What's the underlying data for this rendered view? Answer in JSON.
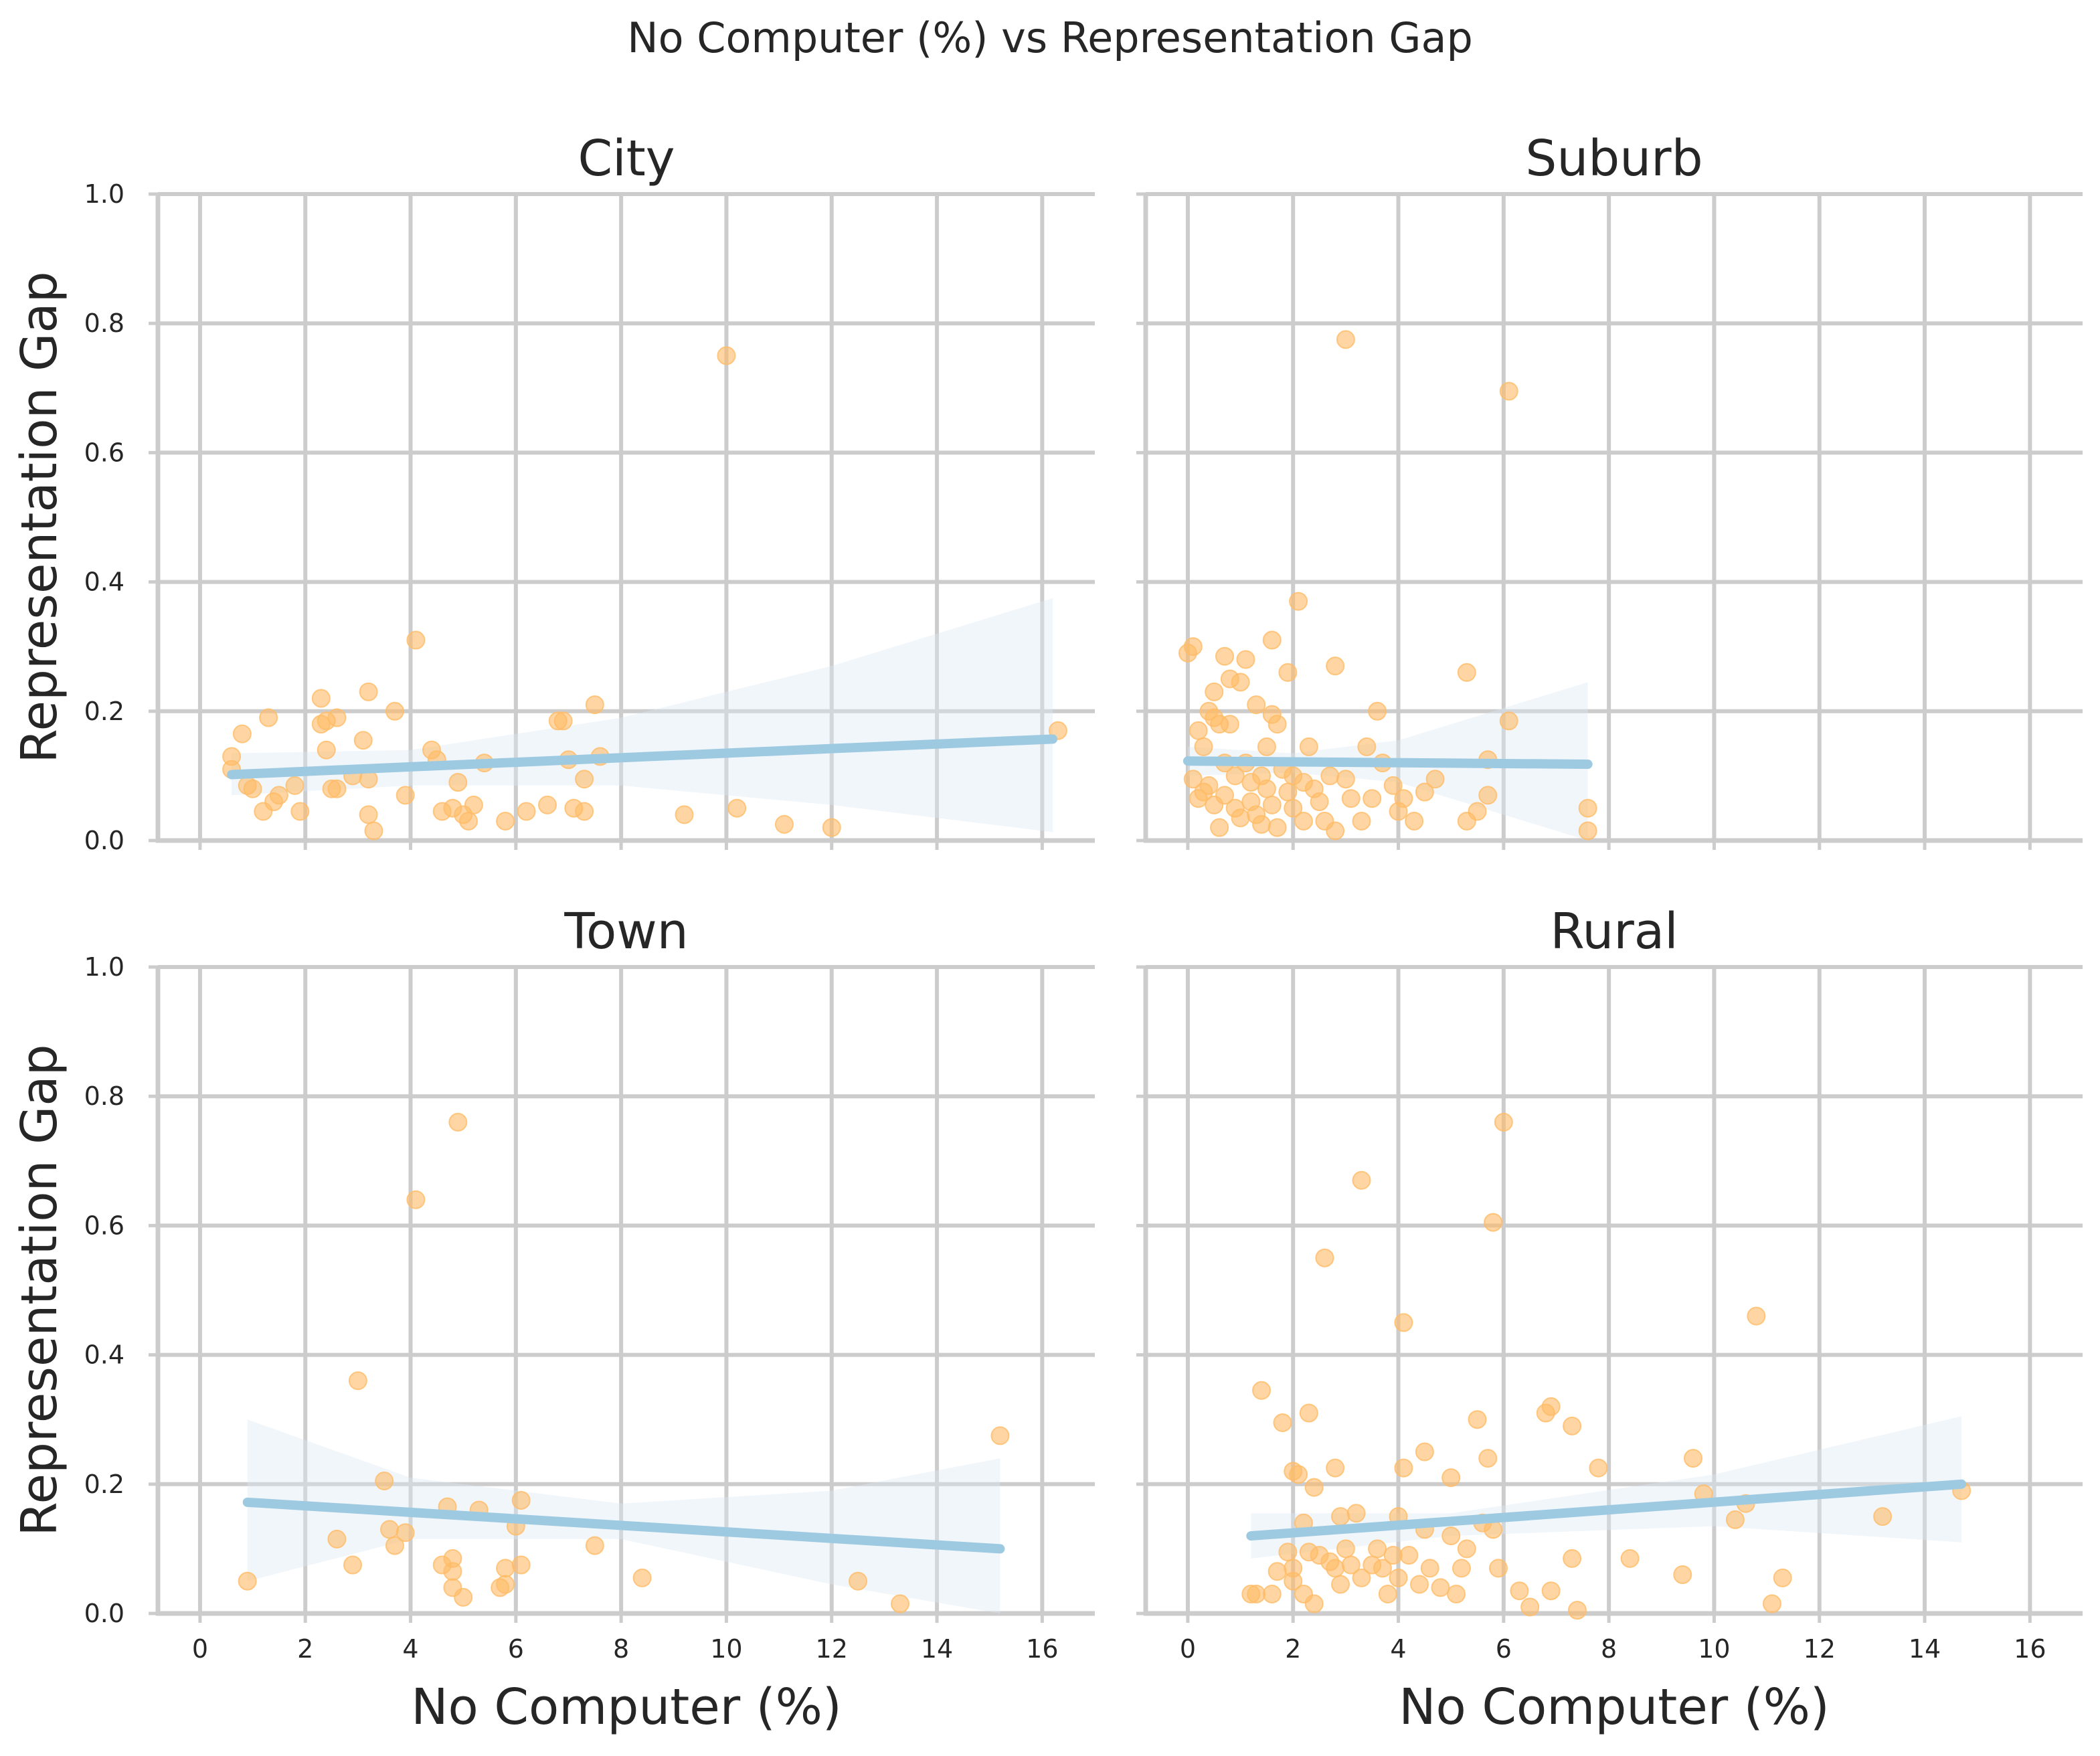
{
  "chart_data": {
    "type": "scatter",
    "title": "No Computer (%) vs Representation Gap",
    "xlabel": "No Computer (%)",
    "ylabel": "Representation Gap",
    "xlim": [
      -0.8,
      17
    ],
    "ylim": [
      0,
      1
    ],
    "xticks": [
      0,
      2,
      4,
      6,
      8,
      10,
      12,
      14,
      16
    ],
    "yticks": [
      0.0,
      0.2,
      0.4,
      0.6,
      0.8,
      1.0
    ],
    "grid": true,
    "shared_axes": true,
    "colors": {
      "points": "#ffbb66",
      "fit_line": "#9ecae1",
      "ci_band": "#dbe9f6"
    },
    "panels": [
      {
        "name": "City",
        "fit": {
          "x": [
            0.6,
            16.2
          ],
          "y": [
            0.102,
            0.157
          ]
        },
        "ci": {
          "x": [
            0.6,
            4.0,
            8.0,
            12.0,
            16.2
          ],
          "lower": [
            0.07,
            0.085,
            0.085,
            0.055,
            0.013
          ],
          "upper": [
            0.135,
            0.14,
            0.19,
            0.27,
            0.375
          ]
        },
        "points": [
          [
            0.6,
            0.13
          ],
          [
            0.6,
            0.11
          ],
          [
            0.8,
            0.165
          ],
          [
            0.9,
            0.085
          ],
          [
            1.0,
            0.08
          ],
          [
            1.2,
            0.045
          ],
          [
            1.3,
            0.19
          ],
          [
            1.4,
            0.06
          ],
          [
            1.5,
            0.07
          ],
          [
            1.8,
            0.085
          ],
          [
            1.9,
            0.045
          ],
          [
            2.3,
            0.22
          ],
          [
            2.3,
            0.18
          ],
          [
            2.4,
            0.185
          ],
          [
            2.4,
            0.14
          ],
          [
            2.5,
            0.08
          ],
          [
            2.6,
            0.19
          ],
          [
            2.6,
            0.08
          ],
          [
            2.9,
            0.1
          ],
          [
            3.1,
            0.155
          ],
          [
            3.2,
            0.23
          ],
          [
            3.2,
            0.095
          ],
          [
            3.2,
            0.04
          ],
          [
            3.3,
            0.015
          ],
          [
            3.7,
            0.2
          ],
          [
            3.9,
            0.07
          ],
          [
            4.1,
            0.31
          ],
          [
            4.4,
            0.14
          ],
          [
            4.5,
            0.125
          ],
          [
            4.6,
            0.045
          ],
          [
            4.8,
            0.05
          ],
          [
            4.9,
            0.09
          ],
          [
            5.0,
            0.04
          ],
          [
            5.1,
            0.03
          ],
          [
            5.2,
            0.055
          ],
          [
            5.4,
            0.12
          ],
          [
            5.8,
            0.03
          ],
          [
            6.2,
            0.045
          ],
          [
            6.6,
            0.055
          ],
          [
            6.8,
            0.185
          ],
          [
            6.9,
            0.185
          ],
          [
            7.0,
            0.125
          ],
          [
            7.1,
            0.05
          ],
          [
            7.3,
            0.095
          ],
          [
            7.3,
            0.045
          ],
          [
            7.5,
            0.21
          ],
          [
            7.6,
            0.13
          ],
          [
            9.2,
            0.04
          ],
          [
            10.0,
            0.75
          ],
          [
            10.2,
            0.05
          ],
          [
            11.1,
            0.025
          ],
          [
            12.0,
            0.02
          ],
          [
            16.3,
            0.17
          ]
        ]
      },
      {
        "name": "Suburb",
        "fit": {
          "x": [
            0.0,
            7.6
          ],
          "y": [
            0.123,
            0.118
          ]
        },
        "ci": {
          "x": [
            0.0,
            2.0,
            4.0,
            7.6
          ],
          "lower": [
            0.1,
            0.105,
            0.09,
            0.0
          ],
          "upper": [
            0.145,
            0.135,
            0.155,
            0.245
          ]
        },
        "points": [
          [
            0.0,
            0.29
          ],
          [
            0.1,
            0.3
          ],
          [
            0.1,
            0.095
          ],
          [
            0.2,
            0.17
          ],
          [
            0.2,
            0.065
          ],
          [
            0.3,
            0.145
          ],
          [
            0.3,
            0.075
          ],
          [
            0.4,
            0.2
          ],
          [
            0.4,
            0.085
          ],
          [
            0.5,
            0.23
          ],
          [
            0.5,
            0.19
          ],
          [
            0.5,
            0.055
          ],
          [
            0.6,
            0.18
          ],
          [
            0.6,
            0.02
          ],
          [
            0.7,
            0.285
          ],
          [
            0.7,
            0.12
          ],
          [
            0.7,
            0.07
          ],
          [
            0.8,
            0.25
          ],
          [
            0.8,
            0.18
          ],
          [
            0.9,
            0.1
          ],
          [
            0.9,
            0.05
          ],
          [
            1.0,
            0.245
          ],
          [
            1.0,
            0.035
          ],
          [
            1.1,
            0.28
          ],
          [
            1.1,
            0.12
          ],
          [
            1.2,
            0.09
          ],
          [
            1.2,
            0.06
          ],
          [
            1.3,
            0.21
          ],
          [
            1.3,
            0.04
          ],
          [
            1.4,
            0.1
          ],
          [
            1.4,
            0.025
          ],
          [
            1.5,
            0.145
          ],
          [
            1.5,
            0.08
          ],
          [
            1.6,
            0.31
          ],
          [
            1.6,
            0.195
          ],
          [
            1.6,
            0.055
          ],
          [
            1.7,
            0.18
          ],
          [
            1.7,
            0.02
          ],
          [
            1.8,
            0.11
          ],
          [
            1.9,
            0.26
          ],
          [
            1.9,
            0.075
          ],
          [
            2.0,
            0.1
          ],
          [
            2.0,
            0.05
          ],
          [
            2.1,
            0.37
          ],
          [
            2.2,
            0.09
          ],
          [
            2.2,
            0.03
          ],
          [
            2.3,
            0.145
          ],
          [
            2.4,
            0.08
          ],
          [
            2.5,
            0.06
          ],
          [
            2.6,
            0.03
          ],
          [
            2.7,
            0.1
          ],
          [
            2.8,
            0.27
          ],
          [
            2.8,
            0.015
          ],
          [
            3.0,
            0.775
          ],
          [
            3.0,
            0.095
          ],
          [
            3.1,
            0.065
          ],
          [
            3.3,
            0.03
          ],
          [
            3.4,
            0.145
          ],
          [
            3.5,
            0.065
          ],
          [
            3.6,
            0.2
          ],
          [
            3.7,
            0.12
          ],
          [
            3.9,
            0.085
          ],
          [
            4.0,
            0.045
          ],
          [
            4.1,
            0.065
          ],
          [
            4.3,
            0.03
          ],
          [
            4.5,
            0.075
          ],
          [
            4.7,
            0.095
          ],
          [
            5.3,
            0.26
          ],
          [
            5.3,
            0.03
          ],
          [
            5.5,
            0.045
          ],
          [
            5.7,
            0.07
          ],
          [
            5.7,
            0.125
          ],
          [
            6.1,
            0.185
          ],
          [
            6.1,
            0.695
          ],
          [
            7.6,
            0.05
          ],
          [
            7.6,
            0.015
          ]
        ]
      },
      {
        "name": "Town",
        "fit": {
          "x": [
            0.9,
            15.2
          ],
          "y": [
            0.172,
            0.1
          ]
        },
        "ci": {
          "x": [
            0.9,
            4.0,
            8.0,
            12.0,
            15.2
          ],
          "lower": [
            0.05,
            0.115,
            0.115,
            0.045,
            0.0
          ],
          "upper": [
            0.3,
            0.21,
            0.17,
            0.19,
            0.24
          ]
        },
        "points": [
          [
            0.9,
            0.05
          ],
          [
            2.6,
            0.115
          ],
          [
            2.9,
            0.075
          ],
          [
            3.0,
            0.36
          ],
          [
            3.5,
            0.205
          ],
          [
            3.6,
            0.13
          ],
          [
            3.7,
            0.105
          ],
          [
            3.9,
            0.125
          ],
          [
            4.1,
            0.64
          ],
          [
            4.6,
            0.075
          ],
          [
            4.7,
            0.165
          ],
          [
            4.8,
            0.085
          ],
          [
            4.8,
            0.065
          ],
          [
            4.8,
            0.04
          ],
          [
            4.9,
            0.76
          ],
          [
            5.0,
            0.025
          ],
          [
            5.3,
            0.16
          ],
          [
            5.7,
            0.04
          ],
          [
            5.8,
            0.045
          ],
          [
            5.8,
            0.07
          ],
          [
            6.0,
            0.135
          ],
          [
            6.1,
            0.175
          ],
          [
            6.1,
            0.075
          ],
          [
            7.5,
            0.105
          ],
          [
            8.4,
            0.055
          ],
          [
            12.5,
            0.05
          ],
          [
            13.3,
            0.015
          ],
          [
            15.2,
            0.275
          ]
        ]
      },
      {
        "name": "Rural",
        "fit": {
          "x": [
            1.2,
            14.7
          ],
          "y": [
            0.12,
            0.2
          ]
        },
        "ci": {
          "x": [
            1.2,
            5.0,
            10.0,
            14.7
          ],
          "lower": [
            0.085,
            0.12,
            0.135,
            0.11
          ],
          "upper": [
            0.155,
            0.155,
            0.215,
            0.305
          ]
        },
        "points": [
          [
            1.2,
            0.03
          ],
          [
            1.3,
            0.03
          ],
          [
            1.4,
            0.345
          ],
          [
            1.6,
            0.03
          ],
          [
            1.7,
            0.065
          ],
          [
            1.8,
            0.295
          ],
          [
            1.9,
            0.095
          ],
          [
            2.0,
            0.22
          ],
          [
            2.0,
            0.07
          ],
          [
            2.0,
            0.05
          ],
          [
            2.1,
            0.215
          ],
          [
            2.2,
            0.03
          ],
          [
            2.2,
            0.14
          ],
          [
            2.3,
            0.31
          ],
          [
            2.3,
            0.095
          ],
          [
            2.4,
            0.195
          ],
          [
            2.4,
            0.015
          ],
          [
            2.5,
            0.09
          ],
          [
            2.6,
            0.55
          ],
          [
            2.7,
            0.08
          ],
          [
            2.8,
            0.225
          ],
          [
            2.8,
            0.07
          ],
          [
            2.9,
            0.15
          ],
          [
            2.9,
            0.045
          ],
          [
            3.0,
            0.1
          ],
          [
            3.1,
            0.075
          ],
          [
            3.2,
            0.155
          ],
          [
            3.3,
            0.67
          ],
          [
            3.3,
            0.055
          ],
          [
            3.5,
            0.075
          ],
          [
            3.6,
            0.1
          ],
          [
            3.7,
            0.07
          ],
          [
            3.8,
            0.03
          ],
          [
            3.9,
            0.09
          ],
          [
            4.0,
            0.15
          ],
          [
            4.0,
            0.055
          ],
          [
            4.1,
            0.45
          ],
          [
            4.1,
            0.225
          ],
          [
            4.2,
            0.09
          ],
          [
            4.4,
            0.045
          ],
          [
            4.5,
            0.25
          ],
          [
            4.5,
            0.13
          ],
          [
            4.6,
            0.07
          ],
          [
            4.8,
            0.04
          ],
          [
            5.0,
            0.21
          ],
          [
            5.0,
            0.12
          ],
          [
            5.1,
            0.03
          ],
          [
            5.2,
            0.07
          ],
          [
            5.3,
            0.1
          ],
          [
            5.5,
            0.3
          ],
          [
            5.6,
            0.14
          ],
          [
            5.7,
            0.24
          ],
          [
            5.8,
            0.605
          ],
          [
            5.8,
            0.13
          ],
          [
            5.9,
            0.07
          ],
          [
            6.0,
            0.76
          ],
          [
            6.3,
            0.035
          ],
          [
            6.5,
            0.01
          ],
          [
            6.8,
            0.31
          ],
          [
            6.9,
            0.32
          ],
          [
            6.9,
            0.035
          ],
          [
            7.3,
            0.29
          ],
          [
            7.3,
            0.085
          ],
          [
            7.4,
            0.005
          ],
          [
            7.8,
            0.225
          ],
          [
            8.4,
            0.085
          ],
          [
            9.4,
            0.06
          ],
          [
            9.6,
            0.24
          ],
          [
            9.8,
            0.185
          ],
          [
            10.4,
            0.145
          ],
          [
            10.6,
            0.17
          ],
          [
            10.8,
            0.46
          ],
          [
            11.1,
            0.015
          ],
          [
            11.3,
            0.055
          ],
          [
            13.2,
            0.15
          ],
          [
            14.7,
            0.19
          ]
        ]
      }
    ]
  }
}
